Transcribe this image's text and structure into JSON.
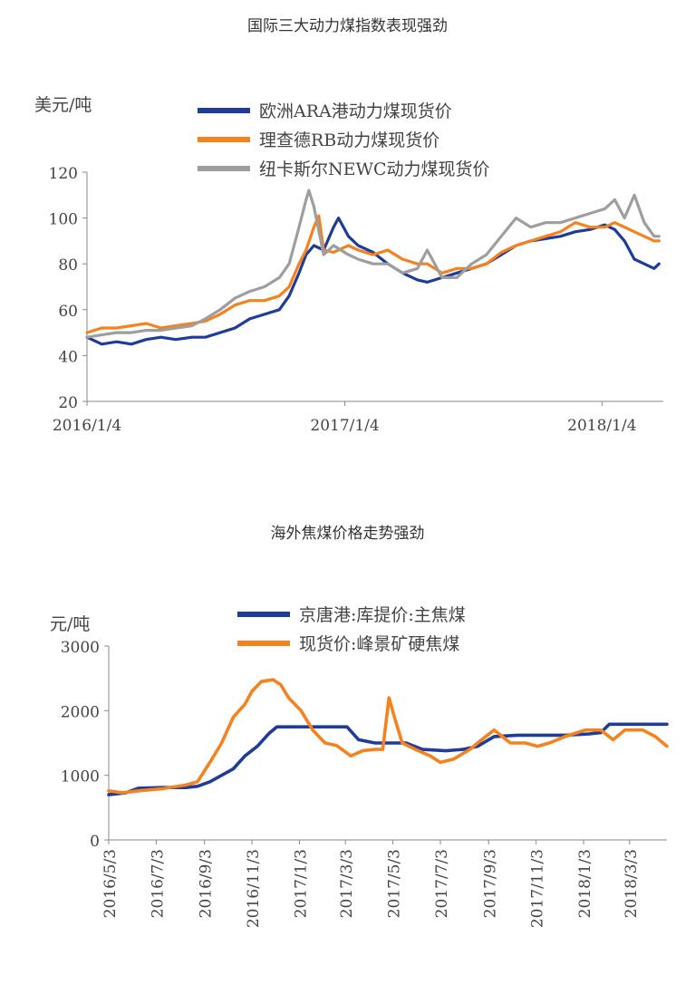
{
  "chart_data": [
    {
      "type": "line",
      "title": "国际三大动力煤指数表现强劲",
      "ylabel": "美元/吨",
      "xlabel": "",
      "ylim": [
        20,
        120
      ],
      "yticks": [
        "20",
        "40",
        "60",
        "80",
        "100",
        "120"
      ],
      "x_domain": [
        "2016-01-04",
        "2018-04-01"
      ],
      "xticks": [
        {
          "date": "2016-01-04",
          "label": "2016/1/4"
        },
        {
          "date": "2017-01-04",
          "label": "2017/1/4"
        },
        {
          "date": "2018-01-04",
          "label": "2018/1/4"
        }
      ],
      "grid": false,
      "legend_position": "top-left",
      "series": [
        {
          "name": "欧洲ARA港动力煤现货价",
          "color": "#1f3c99",
          "points": [
            [
              "2016-01-04",
              48
            ],
            [
              "2016-01-25",
              45
            ],
            [
              "2016-02-15",
              46
            ],
            [
              "2016-03-07",
              45
            ],
            [
              "2016-03-28",
              47
            ],
            [
              "2016-04-18",
              48
            ],
            [
              "2016-05-09",
              47
            ],
            [
              "2016-06-01",
              48
            ],
            [
              "2016-06-20",
              48
            ],
            [
              "2016-07-11",
              50
            ],
            [
              "2016-08-01",
              52
            ],
            [
              "2016-08-22",
              56
            ],
            [
              "2016-09-12",
              58
            ],
            [
              "2016-10-03",
              60
            ],
            [
              "2016-10-17",
              66
            ],
            [
              "2016-10-31",
              76
            ],
            [
              "2016-11-10",
              84
            ],
            [
              "2016-11-21",
              88
            ],
            [
              "2016-12-05",
              86
            ],
            [
              "2016-12-19",
              96
            ],
            [
              "2016-12-26",
              100
            ],
            [
              "2017-01-09",
              92
            ],
            [
              "2017-01-23",
              88
            ],
            [
              "2017-02-13",
              85
            ],
            [
              "2017-03-06",
              80
            ],
            [
              "2017-03-27",
              76
            ],
            [
              "2017-04-17",
              73
            ],
            [
              "2017-05-01",
              72
            ],
            [
              "2017-05-22",
              74
            ],
            [
              "2017-06-12",
              76
            ],
            [
              "2017-07-03",
              78
            ],
            [
              "2017-07-24",
              80
            ],
            [
              "2017-08-14",
              84
            ],
            [
              "2017-09-04",
              88
            ],
            [
              "2017-09-25",
              90
            ],
            [
              "2017-10-16",
              91
            ],
            [
              "2017-11-06",
              92
            ],
            [
              "2017-11-27",
              94
            ],
            [
              "2017-12-18",
              95
            ],
            [
              "2018-01-08",
              97
            ],
            [
              "2018-01-22",
              95
            ],
            [
              "2018-02-05",
              90
            ],
            [
              "2018-02-19",
              82
            ],
            [
              "2018-03-05",
              80
            ],
            [
              "2018-03-19",
              78
            ],
            [
              "2018-03-26",
              80
            ]
          ]
        },
        {
          "name": "理查德RB动力煤现货价",
          "color": "#f5821f",
          "points": [
            [
              "2016-01-04",
              50
            ],
            [
              "2016-01-25",
              52
            ],
            [
              "2016-02-15",
              52
            ],
            [
              "2016-03-07",
              53
            ],
            [
              "2016-03-28",
              54
            ],
            [
              "2016-04-18",
              52
            ],
            [
              "2016-05-09",
              53
            ],
            [
              "2016-06-01",
              54
            ],
            [
              "2016-06-20",
              55
            ],
            [
              "2016-07-11",
              58
            ],
            [
              "2016-08-01",
              62
            ],
            [
              "2016-08-22",
              64
            ],
            [
              "2016-09-12",
              64
            ],
            [
              "2016-10-03",
              66
            ],
            [
              "2016-10-17",
              70
            ],
            [
              "2016-10-31",
              80
            ],
            [
              "2016-11-10",
              86
            ],
            [
              "2016-11-21",
              96
            ],
            [
              "2016-11-28",
              101
            ],
            [
              "2016-12-05",
              86
            ],
            [
              "2016-12-19",
              85
            ],
            [
              "2017-01-09",
              88
            ],
            [
              "2017-01-23",
              86
            ],
            [
              "2017-02-13",
              84
            ],
            [
              "2017-03-06",
              86
            ],
            [
              "2017-03-27",
              82
            ],
            [
              "2017-04-17",
              80
            ],
            [
              "2017-05-01",
              80
            ],
            [
              "2017-05-22",
              76
            ],
            [
              "2017-06-12",
              78
            ],
            [
              "2017-07-03",
              78
            ],
            [
              "2017-07-24",
              80
            ],
            [
              "2017-08-14",
              85
            ],
            [
              "2017-09-04",
              88
            ],
            [
              "2017-09-25",
              90
            ],
            [
              "2017-10-16",
              92
            ],
            [
              "2017-11-06",
              94
            ],
            [
              "2017-11-27",
              98
            ],
            [
              "2017-12-18",
              96
            ],
            [
              "2018-01-08",
              96
            ],
            [
              "2018-01-22",
              98
            ],
            [
              "2018-02-05",
              96
            ],
            [
              "2018-02-19",
              94
            ],
            [
              "2018-03-05",
              92
            ],
            [
              "2018-03-19",
              90
            ],
            [
              "2018-03-26",
              90
            ]
          ]
        },
        {
          "name": "纽卡斯尔NEWC动力煤现货价",
          "color": "#9e9e9e",
          "points": [
            [
              "2016-01-04",
              48
            ],
            [
              "2016-01-25",
              49
            ],
            [
              "2016-02-15",
              50
            ],
            [
              "2016-03-07",
              50
            ],
            [
              "2016-03-28",
              51
            ],
            [
              "2016-04-18",
              51
            ],
            [
              "2016-05-09",
              52
            ],
            [
              "2016-06-01",
              53
            ],
            [
              "2016-06-20",
              56
            ],
            [
              "2016-07-11",
              60
            ],
            [
              "2016-08-01",
              65
            ],
            [
              "2016-08-22",
              68
            ],
            [
              "2016-09-12",
              70
            ],
            [
              "2016-10-03",
              74
            ],
            [
              "2016-10-17",
              80
            ],
            [
              "2016-10-31",
              96
            ],
            [
              "2016-11-10",
              108
            ],
            [
              "2016-11-14",
              112
            ],
            [
              "2016-11-21",
              105
            ],
            [
              "2016-12-05",
              84
            ],
            [
              "2016-12-19",
              88
            ],
            [
              "2017-01-09",
              84
            ],
            [
              "2017-01-23",
              82
            ],
            [
              "2017-02-13",
              80
            ],
            [
              "2017-03-06",
              80
            ],
            [
              "2017-03-27",
              76
            ],
            [
              "2017-04-17",
              78
            ],
            [
              "2017-05-01",
              86
            ],
            [
              "2017-05-22",
              74
            ],
            [
              "2017-06-12",
              74
            ],
            [
              "2017-07-03",
              80
            ],
            [
              "2017-07-24",
              84
            ],
            [
              "2017-08-14",
              92
            ],
            [
              "2017-09-04",
              100
            ],
            [
              "2017-09-25",
              96
            ],
            [
              "2017-10-16",
              98
            ],
            [
              "2017-11-06",
              98
            ],
            [
              "2017-11-27",
              100
            ],
            [
              "2017-12-18",
              102
            ],
            [
              "2018-01-08",
              104
            ],
            [
              "2018-01-22",
              108
            ],
            [
              "2018-02-05",
              100
            ],
            [
              "2018-02-19",
              110
            ],
            [
              "2018-03-05",
              98
            ],
            [
              "2018-03-19",
              92
            ],
            [
              "2018-03-26",
              92
            ]
          ]
        }
      ]
    },
    {
      "type": "line",
      "title": "海外焦煤价格走势强劲",
      "ylabel": "元/吨",
      "xlabel": "",
      "ylim": [
        0,
        3000
      ],
      "yticks": [
        "0",
        "1000",
        "2000",
        "3000"
      ],
      "x_domain": [
        "2016-05-03",
        "2018-04-20"
      ],
      "xticks": [
        {
          "date": "2016-05-03",
          "label": "2016/5/3"
        },
        {
          "date": "2016-07-03",
          "label": "2016/7/3"
        },
        {
          "date": "2016-09-03",
          "label": "2016/9/3"
        },
        {
          "date": "2016-11-03",
          "label": "2016/11/3"
        },
        {
          "date": "2017-01-03",
          "label": "2017/1/3"
        },
        {
          "date": "2017-03-03",
          "label": "2017/3/3"
        },
        {
          "date": "2017-05-03",
          "label": "2017/5/3"
        },
        {
          "date": "2017-07-03",
          "label": "2017/7/3"
        },
        {
          "date": "2017-09-03",
          "label": "2017/9/3"
        },
        {
          "date": "2017-11-03",
          "label": "2017/11/3"
        },
        {
          "date": "2018-01-03",
          "label": "2018/1/3"
        },
        {
          "date": "2018-03-03",
          "label": "2018/3/3"
        }
      ],
      "grid": false,
      "legend_position": "top-center",
      "series": [
        {
          "name": "京唐港:库提价:主焦煤",
          "color": "#1f3c99",
          "points": [
            [
              "2016-05-03",
              700
            ],
            [
              "2016-05-25",
              730
            ],
            [
              "2016-06-10",
              800
            ],
            [
              "2016-07-10",
              810
            ],
            [
              "2016-08-10",
              810
            ],
            [
              "2016-08-25",
              830
            ],
            [
              "2016-09-10",
              900
            ],
            [
              "2016-09-25",
              1000
            ],
            [
              "2016-10-10",
              1100
            ],
            [
              "2016-10-25",
              1300
            ],
            [
              "2016-11-10",
              1450
            ],
            [
              "2016-11-25",
              1650
            ],
            [
              "2016-12-05",
              1750
            ],
            [
              "2017-01-10",
              1750
            ],
            [
              "2017-02-10",
              1750
            ],
            [
              "2017-03-05",
              1750
            ],
            [
              "2017-03-20",
              1550
            ],
            [
              "2017-04-10",
              1500
            ],
            [
              "2017-05-20",
              1500
            ],
            [
              "2017-06-10",
              1400
            ],
            [
              "2017-07-10",
              1380
            ],
            [
              "2017-08-01",
              1400
            ],
            [
              "2017-08-20",
              1450
            ],
            [
              "2017-09-10",
              1600
            ],
            [
              "2017-10-10",
              1620
            ],
            [
              "2017-11-10",
              1620
            ],
            [
              "2017-12-10",
              1620
            ],
            [
              "2018-01-10",
              1640
            ],
            [
              "2018-01-25",
              1660
            ],
            [
              "2018-02-05",
              1790
            ],
            [
              "2018-03-10",
              1790
            ],
            [
              "2018-04-20",
              1790
            ]
          ]
        },
        {
          "name": "现货价:峰景矿硬焦煤",
          "color": "#f5821f",
          "points": [
            [
              "2016-05-03",
              760
            ],
            [
              "2016-05-20",
              730
            ],
            [
              "2016-06-10",
              760
            ],
            [
              "2016-07-10",
              790
            ],
            [
              "2016-08-10",
              850
            ],
            [
              "2016-08-25",
              900
            ],
            [
              "2016-09-10",
              1200
            ],
            [
              "2016-09-25",
              1500
            ],
            [
              "2016-10-10",
              1900
            ],
            [
              "2016-10-25",
              2100
            ],
            [
              "2016-11-03",
              2300
            ],
            [
              "2016-11-15",
              2450
            ],
            [
              "2016-11-30",
              2480
            ],
            [
              "2016-12-10",
              2400
            ],
            [
              "2016-12-20",
              2200
            ],
            [
              "2017-01-05",
              2000
            ],
            [
              "2017-01-20",
              1700
            ],
            [
              "2017-02-05",
              1500
            ],
            [
              "2017-02-20",
              1460
            ],
            [
              "2017-03-10",
              1300
            ],
            [
              "2017-03-25",
              1380
            ],
            [
              "2017-04-10",
              1400
            ],
            [
              "2017-04-20",
              1400
            ],
            [
              "2017-04-28",
              2200
            ],
            [
              "2017-05-05",
              1900
            ],
            [
              "2017-05-15",
              1500
            ],
            [
              "2017-06-01",
              1400
            ],
            [
              "2017-06-20",
              1300
            ],
            [
              "2017-07-03",
              1200
            ],
            [
              "2017-07-20",
              1250
            ],
            [
              "2017-08-10",
              1400
            ],
            [
              "2017-08-25",
              1550
            ],
            [
              "2017-09-10",
              1700
            ],
            [
              "2017-10-01",
              1500
            ],
            [
              "2017-10-20",
              1500
            ],
            [
              "2017-11-05",
              1450
            ],
            [
              "2017-11-20",
              1500
            ],
            [
              "2017-12-10",
              1600
            ],
            [
              "2018-01-05",
              1700
            ],
            [
              "2018-01-25",
              1700
            ],
            [
              "2018-02-10",
              1550
            ],
            [
              "2018-02-25",
              1700
            ],
            [
              "2018-03-20",
              1700
            ],
            [
              "2018-04-05",
              1600
            ],
            [
              "2018-04-20",
              1450
            ]
          ]
        }
      ]
    }
  ]
}
